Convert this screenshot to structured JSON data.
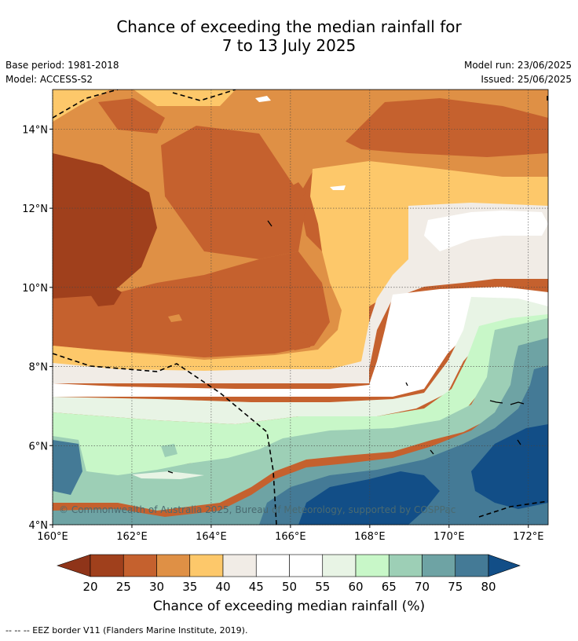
{
  "title": {
    "line1": "Chance of exceeding the median rainfall for",
    "line2": "7 to 13 July 2025"
  },
  "meta": {
    "base_period": "Base period: 1981-2018",
    "model": "Model: ACCESS-S2",
    "model_run": "Model run: 23/06/2025",
    "issued": "Issued: 25/06/2025"
  },
  "map": {
    "lon_range": [
      160,
      172.5
    ],
    "lat_range": [
      4,
      15
    ],
    "x_ticks": [
      "160°E",
      "162°E",
      "164°E",
      "166°E",
      "168°E",
      "170°E",
      "172°E"
    ],
    "y_ticks": [
      "4°N",
      "6°N",
      "8°N",
      "10°N",
      "12°N",
      "14°N"
    ],
    "copyright": "© Commonwealth of Australia 2025, Bureau of Meteorology, supported by COSPPac",
    "grid": true
  },
  "colorbar": {
    "ticks": [
      "20",
      "25",
      "30",
      "35",
      "40",
      "45",
      "50",
      "55",
      "60",
      "65",
      "70",
      "75",
      "80"
    ],
    "colors": [
      "#a0401c",
      "#c5612e",
      "#df9045",
      "#fdc86a",
      "#f1ece6",
      "#ffffff",
      "#ffffff",
      "#e8f4e5",
      "#c8f7c8",
      "#9dcfb6",
      "#6ea3a4",
      "#447a96"
    ],
    "low_color": "#8f3419",
    "high_color": "#124e87",
    "label": "Chance of exceeding median rainfall (%)"
  },
  "footer": {
    "legend": "--  --  -- EEZ border V11 (Flanders Marine Institute, 2019)."
  }
}
